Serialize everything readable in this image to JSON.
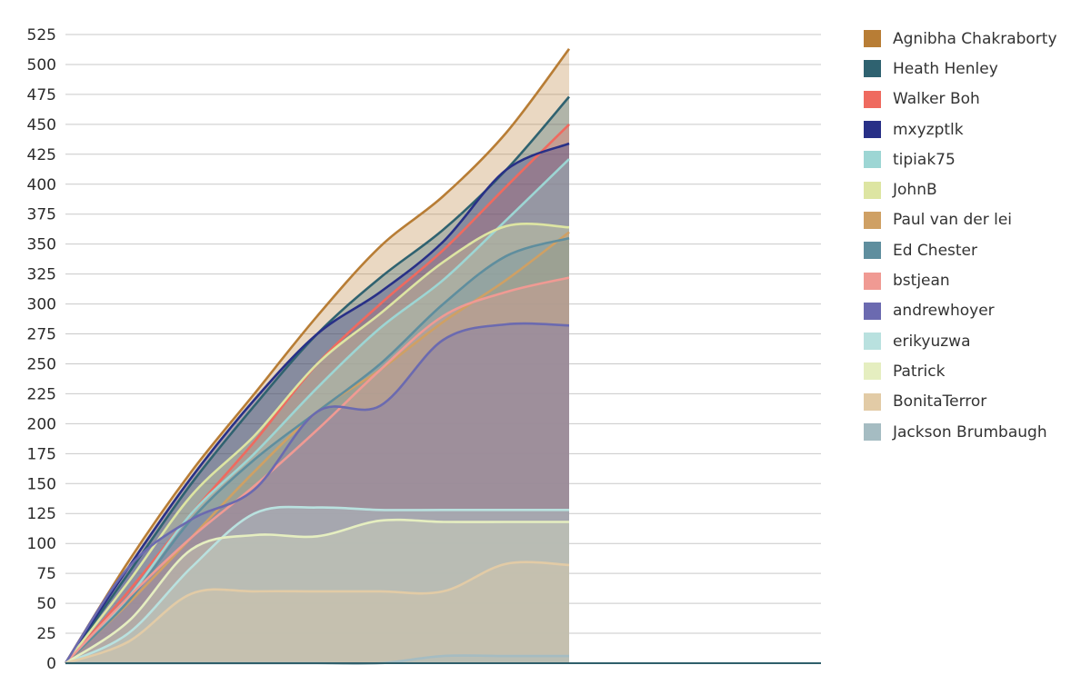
{
  "chart_data": {
    "type": "area",
    "stacked": false,
    "smooth": true,
    "title": "",
    "xlabel": "",
    "ylabel": "",
    "x_tick_labels": [],
    "ylim": [
      0,
      525
    ],
    "y_ticks": [
      0,
      25,
      50,
      75,
      100,
      125,
      150,
      175,
      200,
      225,
      250,
      275,
      300,
      325,
      350,
      375,
      400,
      425,
      450,
      475,
      500,
      525
    ],
    "grid": "horizontal",
    "legend_position": "right",
    "x": [
      0,
      1,
      2,
      3,
      4,
      5,
      6,
      7,
      8,
      9,
      10,
      11,
      12
    ],
    "series": [
      {
        "name": "Agnibha Chakraborty",
        "color": "#b87d35",
        "values": [
          0,
          85,
          160,
          225,
          290,
          348,
          390,
          443,
          513,
          null,
          null,
          null,
          null
        ]
      },
      {
        "name": "Heath Henley",
        "color": "#2f6270",
        "values": [
          0,
          75,
          150,
          215,
          275,
          322,
          362,
          412,
          473,
          null,
          null,
          null,
          null
        ]
      },
      {
        "name": "Walker Boh",
        "color": "#ef6a5f",
        "values": [
          0,
          60,
          125,
          185,
          250,
          300,
          345,
          398,
          450,
          null,
          null,
          null,
          null
        ]
      },
      {
        "name": "mxyzptlk",
        "color": "#283087",
        "values": [
          0,
          80,
          155,
          220,
          275,
          310,
          352,
          412,
          434,
          null,
          null,
          null,
          null
        ]
      },
      {
        "name": "tipiak75",
        "color": "#9dd6d4",
        "values": [
          0,
          55,
          125,
          175,
          230,
          280,
          320,
          370,
          421,
          null,
          null,
          null,
          null
        ]
      },
      {
        "name": "JohnB",
        "color": "#dde5a2",
        "values": [
          0,
          68,
          140,
          190,
          250,
          292,
          335,
          365,
          364,
          null,
          null,
          null,
          null
        ]
      },
      {
        "name": "Paul van der lei",
        "color": "#cfa064",
        "values": [
          0,
          50,
          105,
          160,
          210,
          245,
          285,
          320,
          360,
          null,
          null,
          null,
          null
        ]
      },
      {
        "name": "Ed Chester",
        "color": "#5f8e9e",
        "values": [
          0,
          52,
          120,
          170,
          210,
          250,
          300,
          340,
          355,
          null,
          null,
          null,
          null
        ]
      },
      {
        "name": "bstjean",
        "color": "#f09a93",
        "values": [
          0,
          55,
          105,
          148,
          195,
          245,
          290,
          310,
          322,
          null,
          null,
          null,
          null
        ]
      },
      {
        "name": "andrewhoyer",
        "color": "#6b6ab0",
        "values": [
          0,
          80,
          120,
          145,
          210,
          215,
          270,
          283,
          282,
          null,
          null,
          null,
          null
        ]
      },
      {
        "name": "erikyuzwa",
        "color": "#b9e1df",
        "values": [
          0,
          25,
          80,
          125,
          130,
          128,
          128,
          128,
          128,
          null,
          null,
          null,
          null
        ]
      },
      {
        "name": "Patrick",
        "color": "#e5eec0",
        "values": [
          0,
          35,
          95,
          107,
          106,
          119,
          118,
          118,
          118,
          null,
          null,
          null,
          null
        ]
      },
      {
        "name": "BonitaTerror",
        "color": "#e2cba6",
        "values": [
          0,
          18,
          58,
          60,
          60,
          60,
          60,
          83,
          82,
          null,
          null,
          null,
          null
        ]
      },
      {
        "name": "Jackson Brumbaugh",
        "color": "#a5bcc2",
        "values": [
          0,
          0,
          0,
          0,
          0,
          0,
          6,
          6,
          6,
          null,
          null,
          null,
          null
        ]
      }
    ]
  }
}
